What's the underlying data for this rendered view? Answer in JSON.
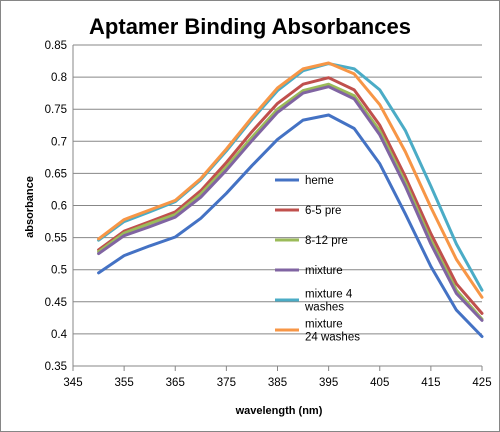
{
  "chart_data": {
    "type": "line",
    "title": "Aptamer Binding Absorbances",
    "xlabel": "wavelength (nm)",
    "ylabel": "absorbance",
    "xlim": [
      345,
      425
    ],
    "ylim": [
      0.35,
      0.85
    ],
    "xticks": [
      345,
      355,
      365,
      375,
      385,
      395,
      405,
      415,
      425
    ],
    "yticks": [
      0.35,
      0.4,
      0.45,
      0.5,
      0.55,
      0.6,
      0.65,
      0.7,
      0.75,
      0.8,
      0.85
    ],
    "ytick_labels": [
      "0.35",
      "0.4",
      "0.45",
      "0.5",
      "0.55",
      "0.6",
      "0.65",
      "0.7",
      "0.75",
      "0.8",
      "0.85"
    ],
    "grid": "horizontal",
    "legend_position": "center-right",
    "x": [
      350,
      355,
      360,
      365,
      370,
      375,
      380,
      385,
      390,
      395,
      400,
      405,
      410,
      415,
      420,
      425
    ],
    "series": [
      {
        "name": "heme",
        "color": "#4472C4",
        "values": [
          0.495,
          0.522,
          0.537,
          0.551,
          0.58,
          0.619,
          0.662,
          0.703,
          0.733,
          0.741,
          0.72,
          0.665,
          0.587,
          0.505,
          0.437,
          0.396
        ]
      },
      {
        "name": "6-5 pre",
        "color": "#C0504D",
        "values": [
          0.531,
          0.56,
          0.575,
          0.59,
          0.623,
          0.667,
          0.715,
          0.759,
          0.789,
          0.799,
          0.78,
          0.725,
          0.645,
          0.556,
          0.478,
          0.432
        ]
      },
      {
        "name": "8-12 pre",
        "color": "#9BBB59",
        "values": [
          0.528,
          0.557,
          0.572,
          0.586,
          0.618,
          0.66,
          0.706,
          0.75,
          0.779,
          0.789,
          0.771,
          0.716,
          0.636,
          0.546,
          0.468,
          0.423
        ]
      },
      {
        "name": "mixture",
        "color": "#8064A2",
        "values": [
          0.525,
          0.553,
          0.567,
          0.582,
          0.613,
          0.655,
          0.701,
          0.745,
          0.775,
          0.785,
          0.766,
          0.71,
          0.63,
          0.54,
          0.463,
          0.421
        ]
      },
      {
        "name": "mixture 4 washes",
        "color": "#4BACC6",
        "values": [
          0.546,
          0.575,
          0.59,
          0.606,
          0.64,
          0.685,
          0.734,
          0.779,
          0.81,
          0.821,
          0.813,
          0.78,
          0.717,
          0.63,
          0.54,
          0.468
        ]
      },
      {
        "name": "mixture 24 washes",
        "color": "#F79646",
        "values": [
          0.548,
          0.578,
          0.593,
          0.608,
          0.642,
          0.688,
          0.737,
          0.783,
          0.813,
          0.822,
          0.805,
          0.757,
          0.684,
          0.597,
          0.516,
          0.457
        ]
      }
    ]
  }
}
